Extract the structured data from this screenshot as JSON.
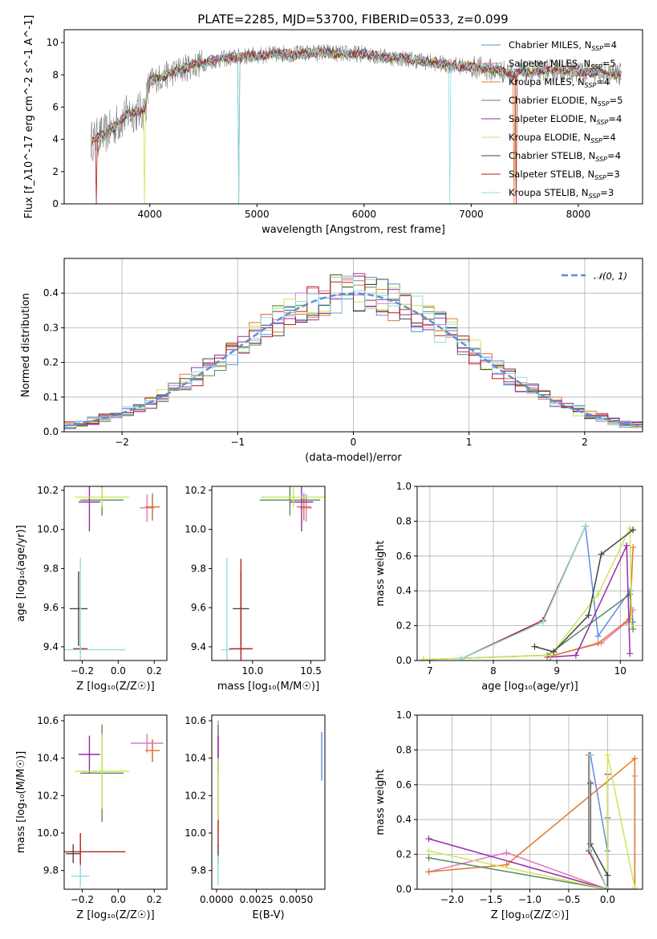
{
  "figure": {
    "title": "PLATE=2285, MJD=53700, FIBERID=0533, z=0.099"
  },
  "colors": {
    "Chabrier MILES": "#5b8ee0",
    "Salpeter MILES": "#e377c2",
    "Kroupa MILES": "#e07a2a",
    "Chabrier ELODIE": "#5a8a5a",
    "Salpeter ELODIE": "#9b2aaa",
    "Kroupa ELODIE": "#cce65a",
    "Chabrier STELIB": "#444444",
    "Salpeter STELIB": "#b22222",
    "Kroupa STELIB": "#8fdfe0"
  },
  "chart_data": [
    {
      "id": "spectrum",
      "type": "line",
      "title": "PLATE=2285, MJD=53700, FIBERID=0533, z=0.099",
      "xlabel": "wavelength [Angstrom, rest frame]",
      "ylabel": "Flux [f_λ10^-17 erg cm^-2 s^-1 A^-1]",
      "xlim": [
        3200,
        8600
      ],
      "ylim": [
        0,
        10.8
      ],
      "xticks": [
        "4000",
        "5000",
        "6000",
        "7000",
        "8000"
      ],
      "yticks": [
        "0",
        "2",
        "4",
        "6",
        "8",
        "10"
      ],
      "grid": false,
      "legend_position": "top-right",
      "legend": [
        {
          "name": "Chabrier MILES",
          "nssp": "4"
        },
        {
          "name": "Salpeter MILES",
          "nssp": "5"
        },
        {
          "name": "Kroupa MILES",
          "nssp": "4"
        },
        {
          "name": "Chabrier ELODIE",
          "nssp": "5"
        },
        {
          "name": "Salpeter ELODIE",
          "nssp": "4"
        },
        {
          "name": "Kroupa ELODIE",
          "nssp": "4"
        },
        {
          "name": "Chabrier STELIB",
          "nssp": "4"
        },
        {
          "name": "Salpeter STELIB",
          "nssp": "3"
        },
        {
          "name": "Kroupa STELIB",
          "nssp": "3"
        }
      ],
      "continuum": {
        "x": [
          3450,
          3600,
          3800,
          3950,
          4000,
          4200,
          4400,
          4600,
          4800,
          5000,
          5200,
          5400,
          5600,
          5800,
          6000,
          6200,
          6400,
          6600,
          6800,
          7000,
          7200,
          7400,
          7600,
          7800,
          8000,
          8200,
          8400
        ],
        "y": [
          3.9,
          4.4,
          5.6,
          5.8,
          7.6,
          8.1,
          8.6,
          8.9,
          9.1,
          9.2,
          9.3,
          9.3,
          9.4,
          9.3,
          9.3,
          9.1,
          9.0,
          8.8,
          8.6,
          8.5,
          8.3,
          8.1,
          8.2,
          8.3,
          8.2,
          8.1,
          8.0
        ]
      }
    },
    {
      "id": "residuals",
      "type": "histogram",
      "xlabel": "(data-model)/error",
      "ylabel": "Normed distribution",
      "xlim": [
        -2.5,
        2.5
      ],
      "ylim": [
        0,
        0.5
      ],
      "xticks": [
        "−2",
        "−1",
        "0",
        "1",
        "2"
      ],
      "yticks": [
        "0.0",
        "0.1",
        "0.2",
        "0.3",
        "0.4"
      ],
      "grid": true,
      "legend_position": "top-right",
      "legend_label": "𝒩(0, 1)",
      "bin_width": 0.1
    },
    {
      "id": "age-vs-Z",
      "type": "errorbar",
      "xlabel": "Z [log₁₀(Z/Z☉)]",
      "ylabel": "age  [log₁₀(age/yr)]",
      "xlim": [
        -0.3,
        0.27
      ],
      "ylim": [
        9.33,
        10.22
      ],
      "xticks": [
        "−0.2",
        "0.0",
        "0.2"
      ],
      "yticks": [
        "9.4",
        "9.6",
        "9.8",
        "10.0",
        "10.2"
      ],
      "points": [
        {
          "model": "Chabrier MILES",
          "x": 0.19,
          "xerr": 0.04,
          "y": 10.115,
          "yerr": 0.07
        },
        {
          "model": "Salpeter MILES",
          "x": 0.16,
          "xerr": 0.04,
          "y": 10.11,
          "yerr": 0.07
        },
        {
          "model": "Kroupa MILES",
          "x": 0.19,
          "xerr": 0.04,
          "y": 10.115,
          "yerr": 0.06
        },
        {
          "model": "Chabrier ELODIE",
          "x": -0.09,
          "xerr": 0.12,
          "y": 10.15,
          "yerr": 0.08
        },
        {
          "model": "Salpeter ELODIE",
          "x": -0.16,
          "xerr": 0.06,
          "y": 10.14,
          "yerr": 0.15
        },
        {
          "model": "Kroupa ELODIE",
          "x": -0.09,
          "xerr": 0.15,
          "y": 10.165,
          "yerr": 0.05
        },
        {
          "model": "Chabrier STELIB",
          "x": -0.22,
          "xerr": 0.05,
          "y": 9.595,
          "yerr": 0.19
        },
        {
          "model": "Salpeter STELIB",
          "x": -0.21,
          "xerr": 0.04,
          "y": 9.39,
          "yerr": 0.02
        },
        {
          "model": "Kroupa STELIB",
          "x": -0.21,
          "xerr": 0.25,
          "y": 9.385,
          "yerr": 0.47
        }
      ]
    },
    {
      "id": "age-vs-mass",
      "type": "errorbar",
      "xlabel": "mass [log₁₀(M/M☉)]",
      "ylabel": "",
      "xlim": [
        9.65,
        10.62
      ],
      "ylim": [
        9.33,
        10.22
      ],
      "xticks": [
        "10.0",
        "10.5"
      ],
      "yticks": [
        "9.4",
        "9.6",
        "9.8",
        "10.0",
        "10.2"
      ],
      "points": [
        {
          "model": "Chabrier MILES",
          "x": 10.44,
          "xerr": 0.06,
          "y": 10.115,
          "yerr": 0.07
        },
        {
          "model": "Salpeter MILES",
          "x": 10.46,
          "xerr": 0.05,
          "y": 10.11,
          "yerr": 0.07
        },
        {
          "model": "Kroupa MILES",
          "x": 10.44,
          "xerr": 0.06,
          "y": 10.115,
          "yerr": 0.06
        },
        {
          "model": "Chabrier ELODIE",
          "x": 10.32,
          "xerr": 0.26,
          "y": 10.15,
          "yerr": 0.08
        },
        {
          "model": "Salpeter ELODIE",
          "x": 10.42,
          "xerr": 0.1,
          "y": 10.14,
          "yerr": 0.15
        },
        {
          "model": "Kroupa ELODIE",
          "x": 10.35,
          "xerr": 0.28,
          "y": 10.165,
          "yerr": 0.05
        },
        {
          "model": "Chabrier STELIB",
          "x": 9.9,
          "xerr": 0.07,
          "y": 9.595,
          "yerr": 0.19
        },
        {
          "model": "Salpeter STELIB",
          "x": 9.9,
          "xerr": 0.1,
          "y": 9.39,
          "yerr": 0.46
        },
        {
          "model": "Kroupa STELIB",
          "x": 9.78,
          "xerr": 0.05,
          "y": 9.385,
          "yerr": 0.47
        }
      ]
    },
    {
      "id": "mass-weight-vs-age",
      "type": "line",
      "xlabel": "age  [log₁₀(age/yr)]",
      "ylabel": "mass weight",
      "xlim": [
        6.8,
        10.35
      ],
      "ylim": [
        0,
        1
      ],
      "xticks": [
        "7",
        "8",
        "9",
        "10"
      ],
      "yticks": [
        "0.0",
        "0.2",
        "0.4",
        "0.6",
        "0.8",
        "1.0"
      ],
      "grid": true,
      "series": [
        {
          "model": "Chabrier MILES",
          "x": [
            7.5,
            8.78,
            9.45,
            9.65,
            10.15,
            10.2
          ],
          "y": [
            0.01,
            0.23,
            0.77,
            0.14,
            0.4,
            0.22
          ]
        },
        {
          "model": "Salpeter MILES",
          "x": [
            8.85,
            9.7,
            10.1,
            10.2
          ],
          "y": [
            0.02,
            0.1,
            0.22,
            0.29
          ]
        },
        {
          "model": "Kroupa MILES",
          "x": [
            8.85,
            9.65,
            10.15,
            10.2
          ],
          "y": [
            0.02,
            0.1,
            0.24,
            0.65
          ]
        },
        {
          "model": "Chabrier ELODIE",
          "x": [
            6.9,
            8.85,
            10.15,
            10.2
          ],
          "y": [
            0.005,
            0.03,
            0.38,
            0.18
          ]
        },
        {
          "model": "Salpeter ELODIE",
          "x": [
            8.9,
            9.3,
            10.1,
            10.15
          ],
          "y": [
            0.02,
            0.03,
            0.66,
            0.04
          ]
        },
        {
          "model": "Kroupa ELODIE",
          "x": [
            6.9,
            8.9,
            9.65,
            10.15,
            10.18
          ],
          "y": [
            0.005,
            0.03,
            0.38,
            0.76,
            0.2
          ]
        },
        {
          "model": "Chabrier STELIB",
          "x": [
            8.65,
            8.95,
            9.5,
            9.7,
            10.2
          ],
          "y": [
            0.08,
            0.05,
            0.26,
            0.61,
            0.75
          ]
        },
        {
          "model": "Salpeter STELIB",
          "x": [
            7.5,
            8.78,
            9.45
          ],
          "y": [
            0.01,
            0.23,
            0.77
          ]
        },
        {
          "model": "Kroupa STELIB",
          "x": [
            7.5,
            8.78,
            9.45
          ],
          "y": [
            0.01,
            0.22,
            0.77
          ]
        }
      ]
    },
    {
      "id": "mass-vs-Z",
      "type": "errorbar",
      "xlabel": "Z [log₁₀(Z/Z☉)]",
      "ylabel": "mass [log₁₀(M/M☉)]",
      "xlim": [
        -0.3,
        0.27
      ],
      "ylim": [
        9.7,
        10.63
      ],
      "xticks": [
        "−0.2",
        "0.0",
        "0.2"
      ],
      "yticks": [
        "9.8",
        "10.0",
        "10.2",
        "10.4",
        "10.6"
      ],
      "points": [
        {
          "model": "Chabrier MILES",
          "x": 0.19,
          "xerr": 0.04,
          "y": 10.44,
          "yerr": 0.06
        },
        {
          "model": "Salpeter MILES",
          "x": 0.16,
          "xerr": 0.09,
          "y": 10.48,
          "yerr": 0.05
        },
        {
          "model": "Kroupa MILES",
          "x": 0.19,
          "xerr": 0.04,
          "y": 10.44,
          "yerr": 0.06
        },
        {
          "model": "Chabrier ELODIE",
          "x": -0.09,
          "xerr": 0.12,
          "y": 10.32,
          "yerr": 0.26
        },
        {
          "model": "Salpeter ELODIE",
          "x": -0.16,
          "xerr": 0.06,
          "y": 10.42,
          "yerr": 0.1
        },
        {
          "model": "Kroupa ELODIE",
          "x": -0.09,
          "xerr": 0.15,
          "y": 10.33,
          "yerr": 0.2
        },
        {
          "model": "Chabrier STELIB",
          "x": -0.25,
          "xerr": 0.04,
          "y": 9.89,
          "yerr": 0.05
        },
        {
          "model": "Salpeter STELIB",
          "x": -0.21,
          "xerr": 0.25,
          "y": 9.9,
          "yerr": 0.1
        },
        {
          "model": "Kroupa STELIB",
          "x": -0.21,
          "xerr": 0.05,
          "y": 9.77,
          "yerr": 0.06
        }
      ]
    },
    {
      "id": "mass-vs-ebv",
      "type": "errorbar",
      "xlabel": "E(B-V)",
      "ylabel": "",
      "xlim": [
        -0.0003,
        0.0068
      ],
      "ylim": [
        9.7,
        10.63
      ],
      "xticks": [
        "0.0000",
        "0.0025",
        "0.0050"
      ],
      "yticks": [
        "9.8",
        "10.0",
        "10.2",
        "10.4",
        "10.6"
      ],
      "points": [
        {
          "model": "Chabrier MILES",
          "x": 0.0066,
          "xerr": 0,
          "y": 10.41,
          "yerr": 0.13
        },
        {
          "model": "Salpeter MILES",
          "x": 0.0001,
          "xerr": 0,
          "y": 10.5,
          "yerr": 0.1
        },
        {
          "model": "Kroupa MILES",
          "x": 0.0001,
          "xerr": 0,
          "y": 10.44,
          "yerr": 0.06
        },
        {
          "model": "Chabrier ELODIE",
          "x": 0.0001,
          "xerr": 0,
          "y": 10.32,
          "yerr": 0.26
        },
        {
          "model": "Salpeter ELODIE",
          "x": 0.0001,
          "xerr": 0,
          "y": 10.42,
          "yerr": 0.1
        },
        {
          "model": "Kroupa ELODIE",
          "x": 0.0001,
          "xerr": 0,
          "y": 10.2,
          "yerr": 0.2
        },
        {
          "model": "Chabrier STELIB",
          "x": 0.0001,
          "xerr": 0,
          "y": 9.89,
          "yerr": 0.05
        },
        {
          "model": "Salpeter STELIB",
          "x": 0.0001,
          "xerr": 0,
          "y": 10.0,
          "yerr": 0.07
        },
        {
          "model": "Kroupa STELIB",
          "x": 0.0001,
          "xerr": 0,
          "y": 9.8,
          "yerr": 0.08
        }
      ]
    },
    {
      "id": "mass-weight-vs-Z",
      "type": "line",
      "xlabel": "Z [log₁₀(Z/Z☉)]",
      "ylabel": "mass weight",
      "xlim": [
        -2.45,
        0.45
      ],
      "ylim": [
        0,
        1
      ],
      "xticks": [
        "−2.0",
        "−1.5",
        "−1.0",
        "−0.5",
        "0.0"
      ],
      "yticks": [
        "0.0",
        "0.2",
        "0.4",
        "0.6",
        "0.8",
        "1.0"
      ],
      "grid": true,
      "series": [
        {
          "model": "Chabrier MILES",
          "x": [
            -0.22,
            0.0,
            0.0,
            0.35
          ],
          "y": [
            0.77,
            0.22,
            0.0,
            0.0
          ]
        },
        {
          "model": "Salpeter MILES",
          "x": [
            -2.3,
            -1.3,
            0.0,
            0.35,
            0.35
          ],
          "y": [
            0.1,
            0.21,
            0.0,
            0.0,
            0.65
          ]
        },
        {
          "model": "Kroupa MILES",
          "x": [
            -2.3,
            -1.3,
            0.35,
            0.35
          ],
          "y": [
            0.1,
            0.14,
            0.75,
            0.0
          ]
        },
        {
          "model": "Chabrier ELODIE",
          "x": [
            -2.3,
            0.0,
            0.0
          ],
          "y": [
            0.18,
            0.0,
            0.41
          ]
        },
        {
          "model": "Salpeter ELODIE",
          "x": [
            -2.3,
            0.0,
            0.0
          ],
          "y": [
            0.29,
            0.0,
            0.66
          ]
        },
        {
          "model": "Kroupa ELODIE",
          "x": [
            -2.3,
            0.0,
            0.0,
            0.35
          ],
          "y": [
            0.22,
            0.0,
            0.77,
            0.01
          ]
        },
        {
          "model": "Chabrier STELIB",
          "x": [
            -0.22,
            -0.22,
            0.0,
            0.0
          ],
          "y": [
            0.61,
            0.26,
            0.08,
            0.0
          ]
        },
        {
          "model": "Salpeter STELIB",
          "x": [
            -0.24,
            -0.24,
            0.0
          ],
          "y": [
            0.77,
            0.22,
            0.0
          ]
        },
        {
          "model": "Kroupa STELIB",
          "x": [
            -0.23,
            -0.23,
            0.0
          ],
          "y": [
            0.77,
            0.23,
            0.0
          ]
        }
      ]
    }
  ]
}
